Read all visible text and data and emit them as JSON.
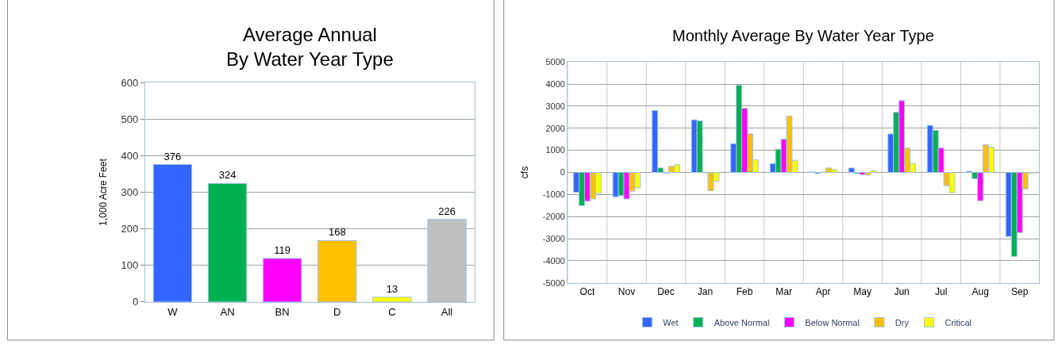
{
  "chart_data": [
    {
      "type": "bar",
      "title": "Average Annual\nBy Water Year Type",
      "ylabel": "1,000 Acre Feet",
      "categories": [
        "W",
        "AN",
        "BN",
        "D",
        "C",
        "All"
      ],
      "values": [
        376,
        324,
        119,
        168,
        13,
        226
      ],
      "colors": [
        "#3366ff",
        "#00b050",
        "#ff00ff",
        "#ffc000",
        "#ffff00",
        "#bfbfbf"
      ],
      "ylim": [
        0,
        600
      ],
      "yticks": [
        0,
        100,
        200,
        300,
        400,
        500,
        600
      ],
      "grid": "y",
      "data_labels": true,
      "legend": false
    },
    {
      "type": "bar",
      "title": "Monthly Average By Water Year Type",
      "ylabel": "cfs",
      "categories": [
        "Oct",
        "Nov",
        "Dec",
        "Jan",
        "Feb",
        "Mar",
        "Apr",
        "May",
        "Jun",
        "Jul",
        "Aug",
        "Sep"
      ],
      "series": [
        {
          "name": "Wet",
          "color": "#3366ff",
          "values": [
            -900,
            -1100,
            2800,
            2380,
            1300,
            400,
            20,
            200,
            1740,
            2130,
            50,
            -2900
          ]
        },
        {
          "name": "Above Normal",
          "color": "#00b050",
          "values": [
            -1500,
            -1050,
            200,
            2330,
            3950,
            1050,
            -50,
            -50,
            2720,
            1900,
            -280,
            -3800
          ]
        },
        {
          "name": "Below Normal",
          "color": "#ff00ff",
          "values": [
            -1300,
            -1200,
            -30,
            -20,
            2900,
            1500,
            10,
            -100,
            3250,
            1100,
            -1280,
            -2720
          ]
        },
        {
          "name": "Dry",
          "color": "#ffc000",
          "values": [
            -1200,
            -850,
            280,
            -830,
            1750,
            2550,
            200,
            -120,
            1100,
            -600,
            1250,
            -750
          ]
        },
        {
          "name": "Critical",
          "color": "#ffff00",
          "values": [
            -950,
            -700,
            350,
            -400,
            570,
            550,
            130,
            80,
            400,
            -920,
            1140,
            -50
          ]
        }
      ],
      "ylim": [
        -5000,
        5000
      ],
      "yticks": [
        -5000,
        -4000,
        -3000,
        -2000,
        -1000,
        0,
        1000,
        2000,
        3000,
        4000,
        5000
      ],
      "grid": true,
      "legend": "bottom"
    }
  ]
}
